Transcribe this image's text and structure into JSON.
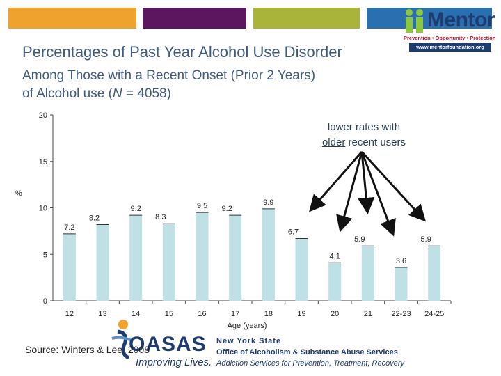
{
  "header": {
    "bands": [
      "#f0a22e",
      "#5c1660",
      "#a9b53a",
      "#2a6fb0"
    ],
    "title_line1": "Percentages of Past Year Alcohol Use Disorder",
    "title_line2": "Among Those with a Recent Onset (Prior 2 Years)",
    "title_line3_pre": "of Alcohol use (",
    "title_line3_n": "N",
    "title_line3_post": " = 4058)"
  },
  "mentor_logo": {
    "name": "Mentor",
    "tagline": "Prevention • Opportunity • Protection",
    "url": "www.mentorfoundation.org",
    "icon": "mentor-people-icon"
  },
  "annotation": {
    "line1": "lower rates with",
    "line2_underlined": "older",
    "line2_rest": " recent users"
  },
  "source": "Source:  Winters & Lee, 2008",
  "oasas": {
    "wordmark": "OASAS",
    "tagline": "Improving Lives.",
    "line1": "New York State",
    "line2": "Office of Alcoholism & Substance Abuse Services",
    "line3": "Addiction Services for Prevention, Treatment, Recovery",
    "icon": "oasas-figure-icon"
  },
  "chart_data": {
    "type": "bar",
    "title": "",
    "xlabel": "Age (years)",
    "ylabel": "%",
    "ylim": [
      0,
      20
    ],
    "yticks": [
      0,
      5,
      10,
      15,
      20
    ],
    "grid": false,
    "bar_color": "#bfe0e4",
    "categories": [
      "12",
      "13",
      "14",
      "15",
      "16",
      "17",
      "18",
      "19",
      "20",
      "21",
      "22-23",
      "24-25"
    ],
    "values": [
      7.2,
      8.2,
      9.2,
      8.3,
      9.5,
      9.2,
      9.9,
      6.7,
      4.1,
      5.9,
      3.6,
      5.9
    ],
    "labels": [
      "7.2",
      "8.2",
      "9.2",
      "8.3",
      "9.5",
      "9.2",
      "9.9",
      "6.7",
      "4.1",
      "5.9",
      "3.6",
      "5.9"
    ]
  }
}
